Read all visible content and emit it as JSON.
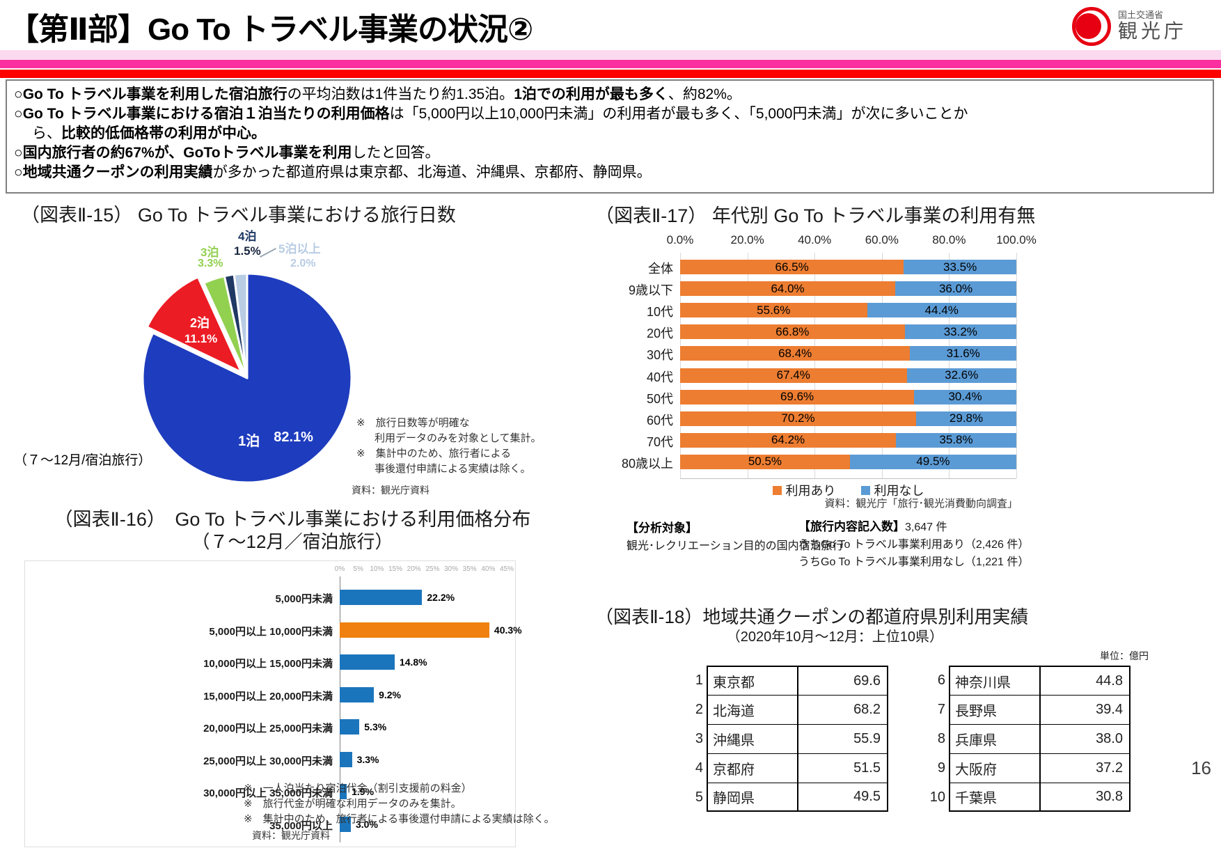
{
  "page_number": "16",
  "header": {
    "title": "【第Ⅱ部】Go To トラベル事業の状況②",
    "logo_ministry": "国土交通省",
    "logo_agency": "観光庁"
  },
  "summary": {
    "marker": "○",
    "b1_bold1": "Go To トラベル事業を利用した宿泊旅行",
    "b1_text1": "の平均泊数は1件当たり約1.35泊。",
    "b1_bold2": "1泊での利用が最も多く",
    "b1_text2": "、約82%。",
    "b2_bold1": "Go To トラベル事業における宿泊１泊当たりの利用価格",
    "b2_text1": "は「5,000円以上10,000円未満」の利用者が最も多く、「5,000円未満」が次に多いことか",
    "b2_text2": "ら、",
    "b2_bold2": "比較的低価格帯の利用が中心。",
    "b3_bold1": "国内旅行者の約67%が、GoToトラベル事業を利用",
    "b3_text1": "したと回答。",
    "b4_bold1": "地域共通クーポンの利用実績",
    "b4_text1": "が多かった都道府県は東京都、北海道、沖縄県、京都府、静岡県。"
  },
  "chart_data": [
    {
      "type": "pie",
      "title": "（図表Ⅱ-15） Go To トラベル事業における旅行日数",
      "labels": [
        "1泊",
        "2泊",
        "3泊",
        "4泊",
        "5泊以上"
      ],
      "values": [
        82.1,
        11.1,
        3.3,
        1.5,
        2.0
      ],
      "pct_labels": [
        "82.1%",
        "11.1%",
        "3.3%",
        "1.5%",
        "2.0%"
      ],
      "colors": [
        "#1e3cbe",
        "#ec1c24",
        "#92d050",
        "#1f3864",
        "#b8cce4"
      ],
      "exploded_index": 1,
      "period_note": "（７～12月/宿泊旅行）",
      "notes": [
        "※　旅行日数等が明確な",
        "利用データのみを対象として集計。",
        "※　集計中のため、旅行者による",
        "事後還付申請による実績は除く。"
      ],
      "source": "資料：観光庁資料"
    },
    {
      "type": "bar",
      "orientation": "horizontal-stacked",
      "title": "（図表Ⅱ-17） 年代別 Go To トラベル事業の利用有無",
      "categories": [
        "全体",
        "9歳以下",
        "10代",
        "20代",
        "30代",
        "40代",
        "50代",
        "60代",
        "70代",
        "80歳以上"
      ],
      "series": [
        {
          "name": "利用あり",
          "color": "#ed7d31",
          "values": [
            66.5,
            64.0,
            55.6,
            66.8,
            68.4,
            67.4,
            69.6,
            70.2,
            64.2,
            50.5
          ]
        },
        {
          "name": "利用なし",
          "color": "#5b9bd5",
          "values": [
            33.5,
            36.0,
            44.4,
            33.2,
            31.6,
            32.6,
            30.4,
            29.8,
            35.8,
            49.5
          ]
        }
      ],
      "x_ticks": [
        "0.0%",
        "20.0%",
        "40.0%",
        "60.0%",
        "80.0%",
        "100.0%"
      ],
      "xlim": [
        0,
        100
      ],
      "legend_position": "bottom",
      "source": "資料：観光庁「旅行･観光消費動向調査」",
      "analysis": {
        "left_header": "【分析対象】",
        "left_body": "観光･レクリエーション目的の国内宿泊旅行",
        "right_header": "【旅行内容記入数】",
        "right_header_value": "3,647 件",
        "right_line1": "うちGo To トラベル事業利用あり（2,426 件）",
        "right_line2": "うちGo To トラベル事業利用なし（1,221 件）"
      }
    },
    {
      "type": "bar",
      "orientation": "horizontal",
      "title_line1": "（図表Ⅱ-16）　Go To トラベル事業における利用価格分布",
      "title_line2": "（７～12月／宿泊旅行）",
      "categories": [
        "5,000円未満",
        "5,000円以上 10,000円未満",
        "10,000円以上 15,000円未満",
        "15,000円以上 20,000円未満",
        "20,000円以上 25,000円未満",
        "25,000円以上 30,000円未満",
        "30,000円以上 35,000円未満",
        "35,000円以上"
      ],
      "values": [
        22.2,
        40.3,
        14.8,
        9.2,
        5.3,
        3.3,
        1.9,
        3.0
      ],
      "value_labels": [
        "22.2%",
        "40.3%",
        "14.8%",
        "9.2%",
        "5.3%",
        "3.3%",
        "1.9%",
        "3.0%"
      ],
      "bar_colors": [
        "#1b75bc",
        "#f0800f",
        "#1b75bc",
        "#1b75bc",
        "#1b75bc",
        "#1b75bc",
        "#1b75bc",
        "#1b75bc"
      ],
      "x_ticks": [
        "0%",
        "5%",
        "10%",
        "15%",
        "20%",
        "25%",
        "30%",
        "35%",
        "40%",
        "45%"
      ],
      "xlim": [
        0,
        45
      ],
      "notes": [
        "※　一人泊当たり宿泊代金（割引支援前の料金）",
        "※　旅行代金が明確な利用データのみを集計。",
        "※　集計中のため、旅行者による事後還付申請による実績は除く。"
      ],
      "source": "資料：観光庁資料"
    },
    {
      "type": "table",
      "title": "（図表Ⅱ-18）地域共通クーポンの都道府県別利用実績",
      "subtitle": "（2020年10月～12月：上位10県）",
      "unit": "単位：億円",
      "left_rows": [
        {
          "rank": "1",
          "pref": "東京都",
          "value": "69.6"
        },
        {
          "rank": "2",
          "pref": "北海道",
          "value": "68.2"
        },
        {
          "rank": "3",
          "pref": "沖縄県",
          "value": "55.9"
        },
        {
          "rank": "4",
          "pref": "京都府",
          "value": "51.5"
        },
        {
          "rank": "5",
          "pref": "静岡県",
          "value": "49.5"
        }
      ],
      "right_rows": [
        {
          "rank": "6",
          "pref": "神奈川県",
          "value": "44.8"
        },
        {
          "rank": "7",
          "pref": "長野県",
          "value": "39.4"
        },
        {
          "rank": "8",
          "pref": "兵庫県",
          "value": "38.0"
        },
        {
          "rank": "9",
          "pref": "大阪府",
          "value": "37.2"
        },
        {
          "rank": "10",
          "pref": "千葉県",
          "value": "30.8"
        }
      ]
    }
  ]
}
